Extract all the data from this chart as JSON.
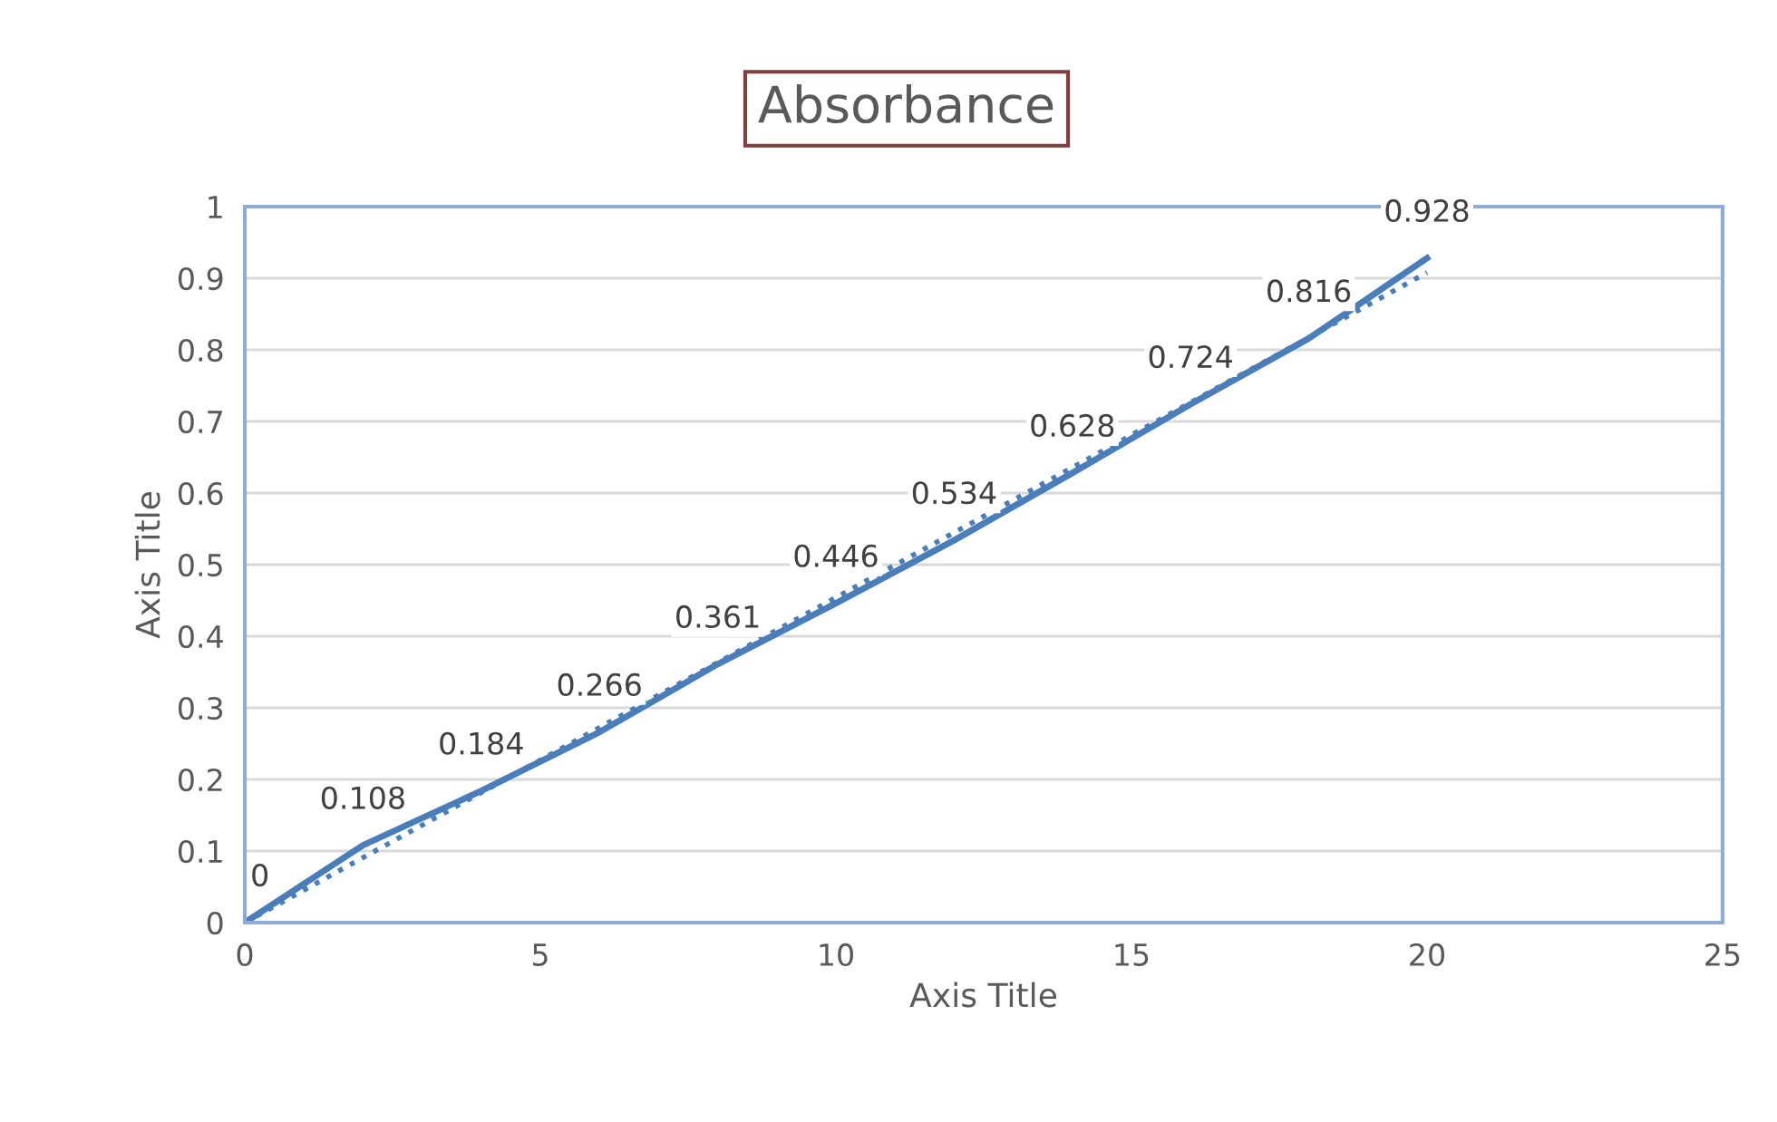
{
  "chart_data": {
    "type": "line",
    "title": "Absorbance",
    "xlabel": "Axis Title",
    "ylabel": "Axis Title",
    "x": [
      0,
      2,
      4,
      6,
      8,
      10,
      12,
      14,
      16,
      18,
      20
    ],
    "series": [
      {
        "color": "#4a7ebb",
        "values": [
          0,
          0.108,
          0.184,
          0.266,
          0.361,
          0.446,
          0.534,
          0.628,
          0.724,
          0.816,
          0.928
        ],
        "value_labels": [
          "0",
          "0.108",
          "0.184",
          "0.266",
          "0.361",
          "0.446",
          "0.534",
          "0.628",
          "0.724",
          "0.816",
          "0.928"
        ],
        "line_style": "solid"
      },
      {
        "type": "line",
        "x": [
          0,
          20
        ],
        "color": "#4a7ebb",
        "values": [
          0,
          0.908
        ],
        "line_style": "dotted"
      }
    ],
    "xlim": [
      0,
      25
    ],
    "xticks": [
      0,
      5,
      10,
      15,
      20,
      25
    ],
    "ylim": [
      0,
      1
    ],
    "yticks": [
      0,
      0.1,
      0.2,
      0.3,
      0.4,
      0.5,
      0.6,
      0.7,
      0.8,
      0.9,
      1
    ],
    "grid": "y",
    "legend": false,
    "marker": "none"
  }
}
